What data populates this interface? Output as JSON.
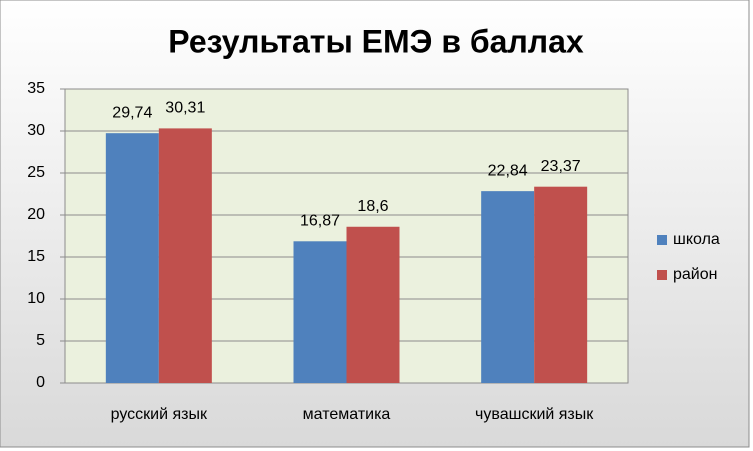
{
  "chart_data": {
    "type": "bar",
    "title": "Результаты ЕМЭ в баллах",
    "categories": [
      "русский язык",
      "математика",
      "чувашский язык"
    ],
    "series": [
      {
        "name": "школа",
        "color": "#4f81bd",
        "values": [
          29.74,
          16.87,
          22.84
        ],
        "value_labels": [
          "29,74",
          "16,87",
          "22,84"
        ]
      },
      {
        "name": "район",
        "color": "#c0504d",
        "values": [
          30.31,
          18.6,
          23.37
        ],
        "value_labels": [
          "30,31",
          "18,6",
          "23,37"
        ]
      }
    ],
    "ylim": [
      0,
      35
    ],
    "yticks": [
      0,
      5,
      10,
      15,
      20,
      25,
      30,
      35
    ],
    "grid": true,
    "legend": "right"
  }
}
